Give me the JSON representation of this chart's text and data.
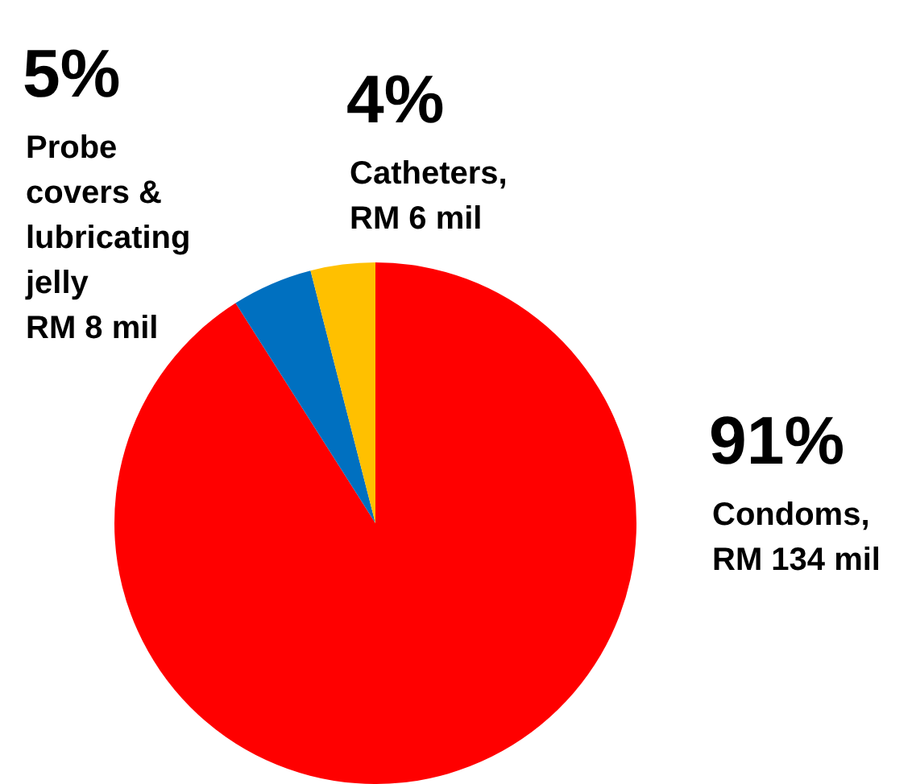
{
  "chart_data": {
    "type": "pie",
    "categories": [
      "Condoms,\nRM 134 mil",
      "Probe\ncovers &\nlubricating\njelly\nRM 8 mil",
      "Catheters,\nRM 6 mil"
    ],
    "values": [
      91,
      5,
      4
    ],
    "value_labels": [
      "91%",
      "5%",
      "4%"
    ],
    "colors": [
      "#ff0000",
      "#0070c0",
      "#ffc000"
    ],
    "legend": false
  }
}
